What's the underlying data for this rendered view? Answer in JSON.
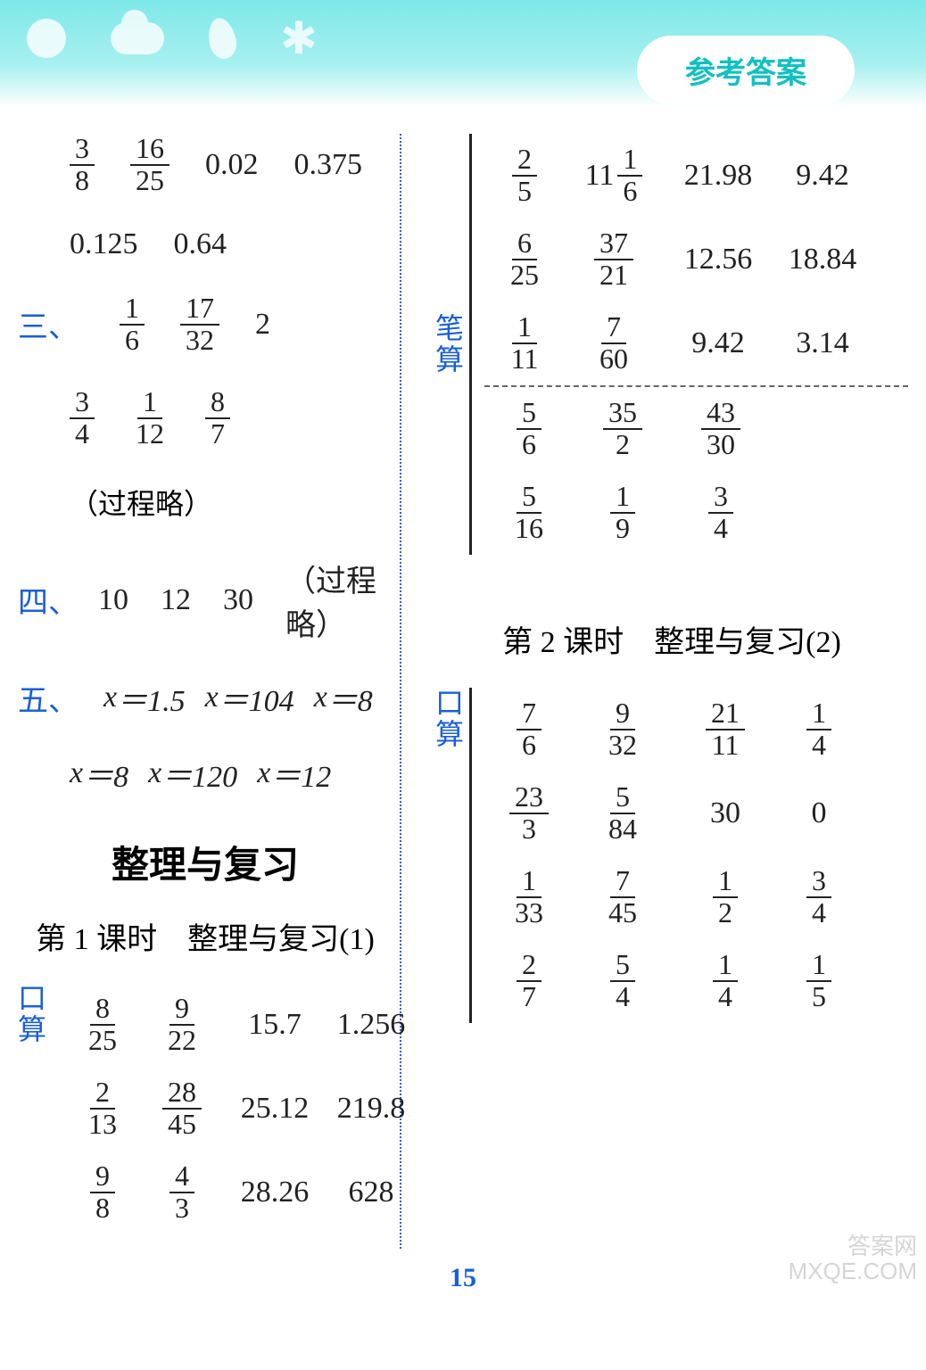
{
  "header": {
    "badge": "参考答案"
  },
  "left": {
    "top_rows": [
      [
        "3/8",
        "16/25",
        "0.02",
        "0.375"
      ],
      [
        "0.125",
        "0.64"
      ]
    ],
    "sec3": {
      "label": "三、",
      "rows": [
        [
          "1/6",
          "17/32",
          "2"
        ],
        [
          "3/4",
          "1/12",
          "8/7"
        ]
      ],
      "note": "（过程略）"
    },
    "sec4": {
      "label": "四、",
      "vals": [
        "10",
        "12",
        "30"
      ],
      "note": "（过程略）"
    },
    "sec5": {
      "label": "五、",
      "rows": [
        [
          "x＝1.5",
          "x＝104",
          "x＝8"
        ],
        [
          "x＝8",
          "x＝120",
          "x＝12"
        ]
      ]
    },
    "block": {
      "title": "整理与复习",
      "sub": "第 1 课时　整理与复习(1)",
      "vlabel": [
        "口",
        "算"
      ],
      "grid": [
        [
          "8/25",
          "9/22",
          "15.7",
          "1.256"
        ],
        [
          "2/13",
          "28/45",
          "25.12",
          "219.8"
        ],
        [
          "9/8",
          "4/3",
          "28.26",
          "628"
        ]
      ]
    }
  },
  "right": {
    "top": {
      "grid1": [
        [
          "2/5",
          "11 1/6",
          "21.98",
          "9.42"
        ],
        [
          "6/25",
          "37/21",
          "12.56",
          "18.84"
        ],
        [
          "1/11",
          "7/60",
          "9.42",
          "3.14"
        ]
      ],
      "grid2": [
        [
          "5/6",
          "35/2",
          "43/30"
        ],
        [
          "5/16",
          "1/9",
          "3/4"
        ]
      ],
      "vlabel": [
        "笔",
        "算"
      ]
    },
    "block2": {
      "sub": "第 2 课时　整理与复习(2)",
      "vlabel": [
        "口",
        "算"
      ],
      "grid": [
        [
          "7/6",
          "9/32",
          "21/11",
          "1/4"
        ],
        [
          "23/3",
          "5/84",
          "30",
          "0"
        ],
        [
          "1/33",
          "7/45",
          "1/2",
          "3/4"
        ],
        [
          "2/7",
          "5/4",
          "1/4",
          "1/5"
        ]
      ]
    }
  },
  "page_num": "15",
  "watermark": {
    "l1": "答案网",
    "l2": "MXQE.COM"
  }
}
